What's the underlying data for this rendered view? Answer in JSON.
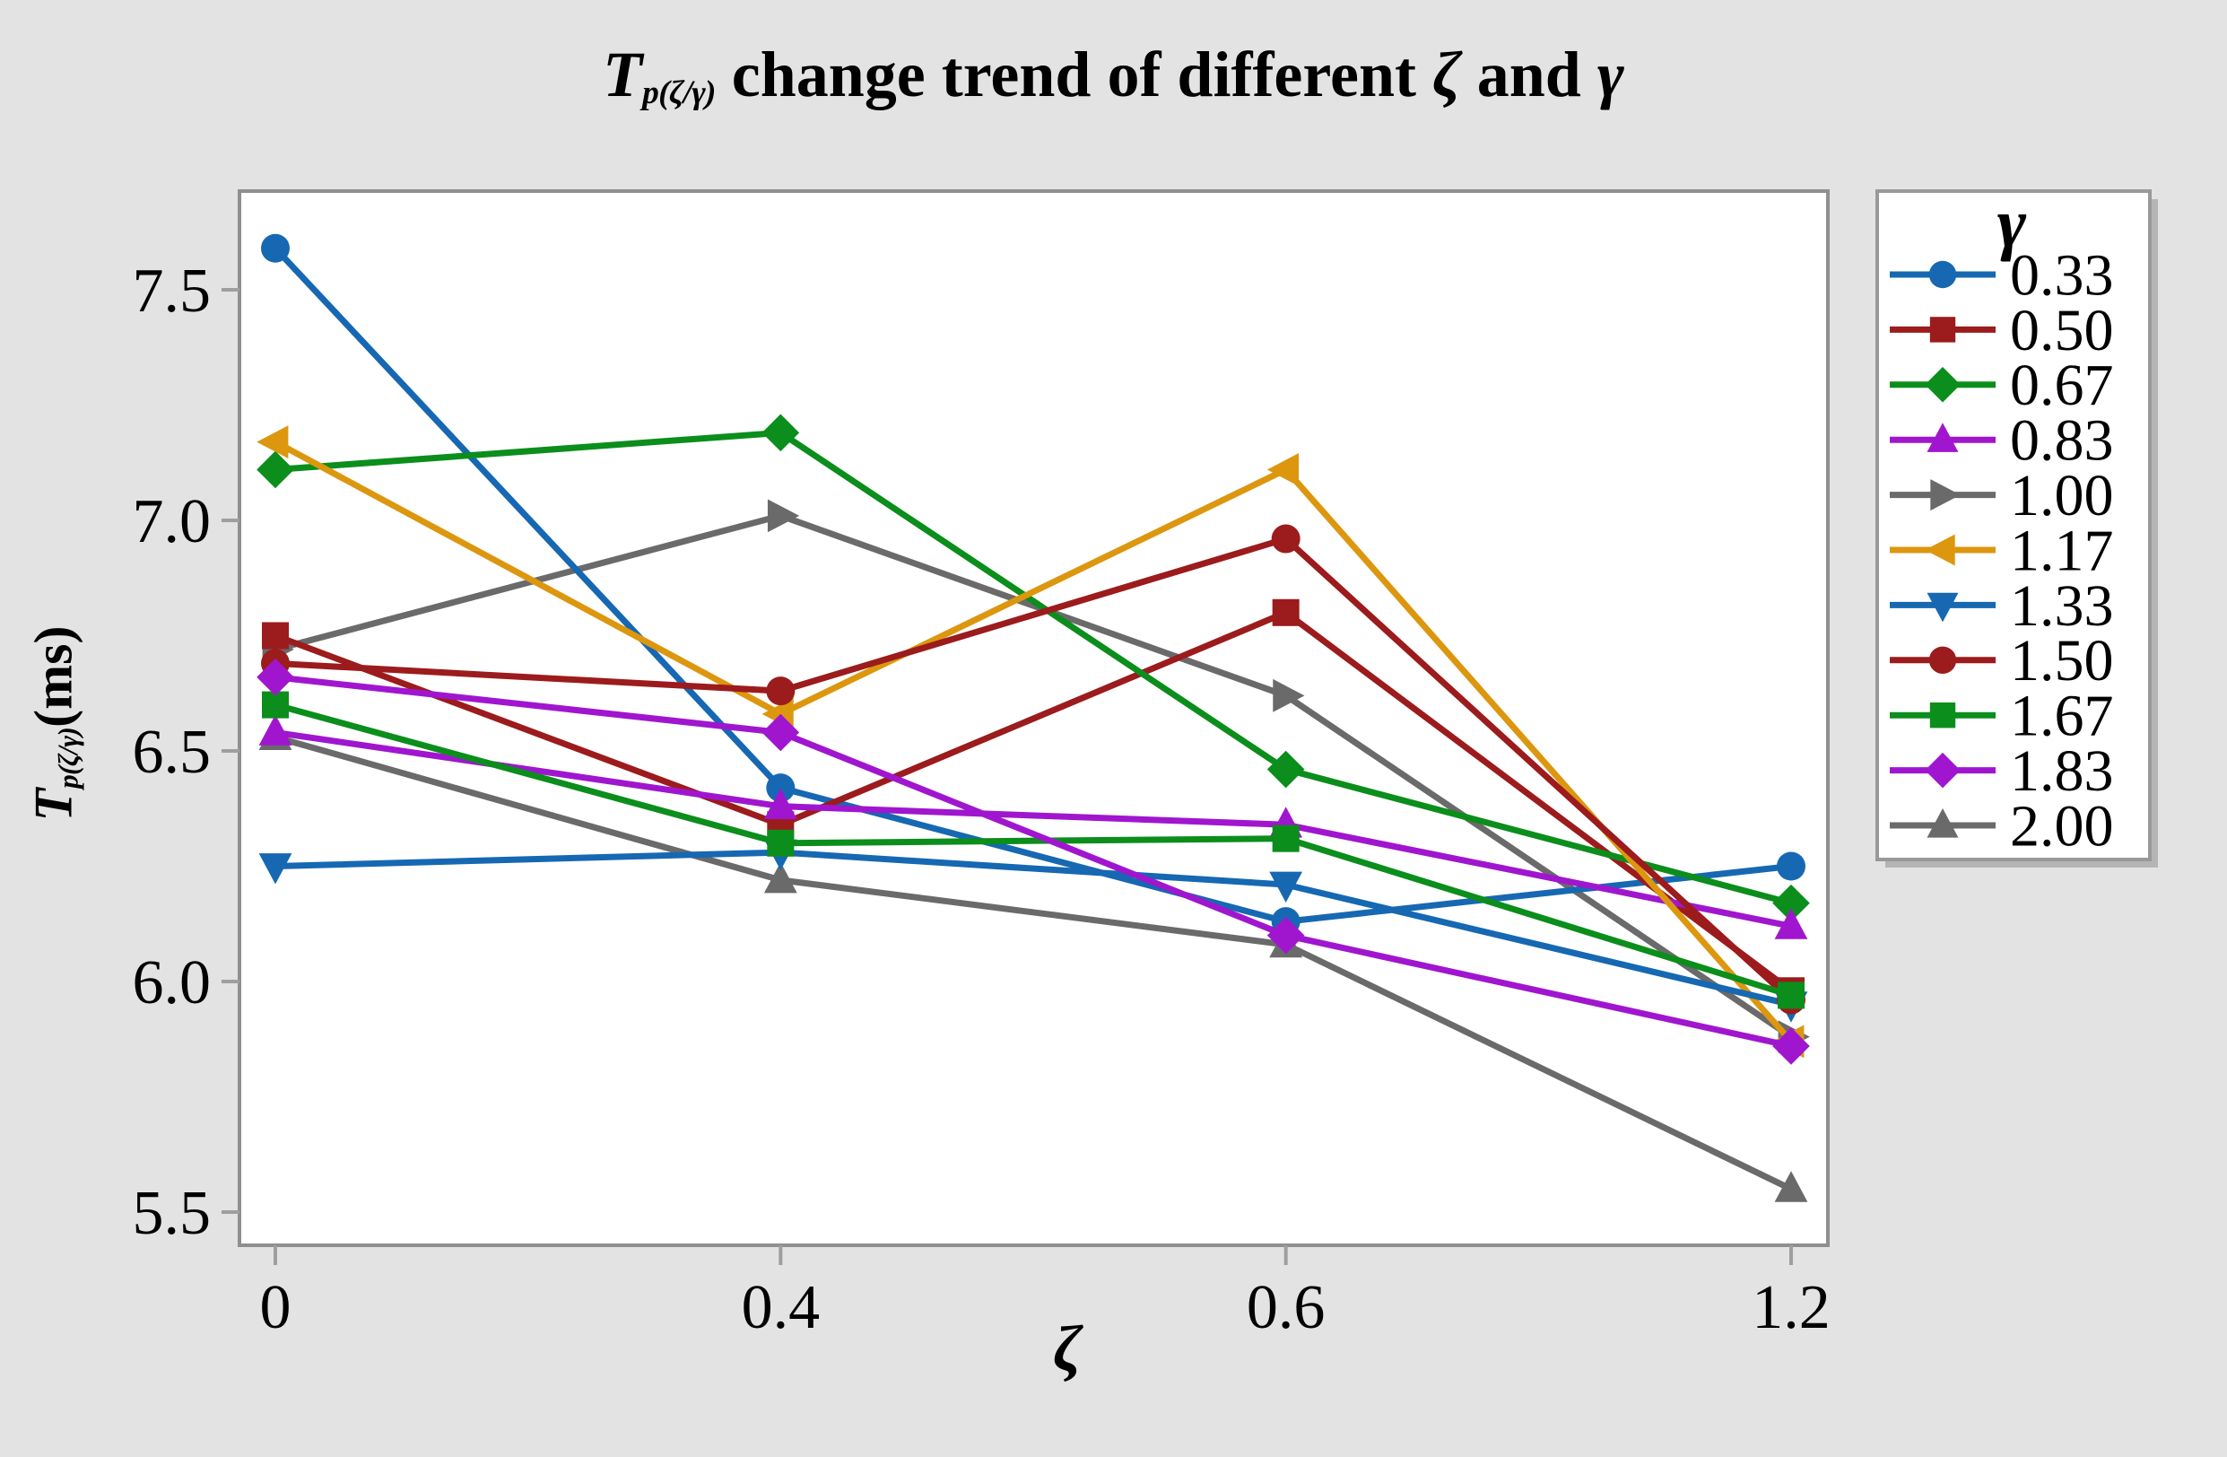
{
  "title": {
    "t": "T",
    "sub": "p(ζ/γ)",
    "main": " change trend of different ",
    "zeta": "ζ",
    "and": " and ",
    "gamma": "γ"
  },
  "axes": {
    "y_t": "T",
    "y_sub": "p(ζ/γ)",
    "y_units": "(ms)",
    "x_label": "ζ"
  },
  "chart_data": {
    "type": "line",
    "title": "Tp(ζ/γ) change trend of different ζ and γ",
    "xlabel": "ζ",
    "ylabel": "Tp(ζ/γ)(ms)",
    "categories": [
      "0",
      "0.4",
      "0.6",
      "1.2"
    ],
    "y_ticks": [
      5.5,
      6.0,
      6.5,
      7.0,
      7.5
    ],
    "ylim": [
      5.43,
      7.71
    ],
    "grid": false,
    "legend_title": "γ",
    "legend_position": "right",
    "colors": {
      "blue": "#1668b2",
      "dark_red": "#9c1b1c",
      "green": "#0b8e1b",
      "purple": "#a016cf",
      "gray": "#6a6a6a",
      "orange": "#dc970f",
      "background": "#e3e3e3",
      "plot_bg": "#ffffff",
      "frame": "#8f8f8f"
    },
    "series": [
      {
        "name": "0.33",
        "color": "#1668b2",
        "marker": "circle",
        "values": [
          7.59,
          6.42,
          6.13,
          6.25
        ]
      },
      {
        "name": "0.50",
        "color": "#9c1b1c",
        "marker": "square",
        "values": [
          6.75,
          6.34,
          6.8,
          5.98
        ]
      },
      {
        "name": "0.67",
        "color": "#0b8e1b",
        "marker": "diamond",
        "values": [
          7.11,
          7.19,
          6.46,
          6.17
        ]
      },
      {
        "name": "0.83",
        "color": "#a016cf",
        "marker": "triangle-up",
        "values": [
          6.54,
          6.38,
          6.34,
          6.12
        ]
      },
      {
        "name": "1.00",
        "color": "#6a6a6a",
        "marker": "triangle-right",
        "values": [
          6.72,
          7.01,
          6.62,
          5.88
        ]
      },
      {
        "name": "1.17",
        "color": "#dc970f",
        "marker": "triangle-left",
        "values": [
          7.17,
          6.58,
          7.11,
          5.87
        ]
      },
      {
        "name": "1.33",
        "color": "#1668b2",
        "marker": "triangle-down",
        "values": [
          6.25,
          6.28,
          6.21,
          5.95
        ]
      },
      {
        "name": "1.50",
        "color": "#9c1b1c",
        "marker": "circle",
        "values": [
          6.69,
          6.63,
          6.96,
          5.96
        ]
      },
      {
        "name": "1.67",
        "color": "#0b8e1b",
        "marker": "square",
        "values": [
          6.6,
          6.3,
          6.31,
          5.97
        ]
      },
      {
        "name": "1.83",
        "color": "#a016cf",
        "marker": "diamond",
        "values": [
          6.66,
          6.54,
          6.1,
          5.86
        ]
      },
      {
        "name": "2.00",
        "color": "#6a6a6a",
        "marker": "triangle-up",
        "values": [
          6.53,
          6.22,
          6.08,
          5.55
        ]
      }
    ]
  }
}
